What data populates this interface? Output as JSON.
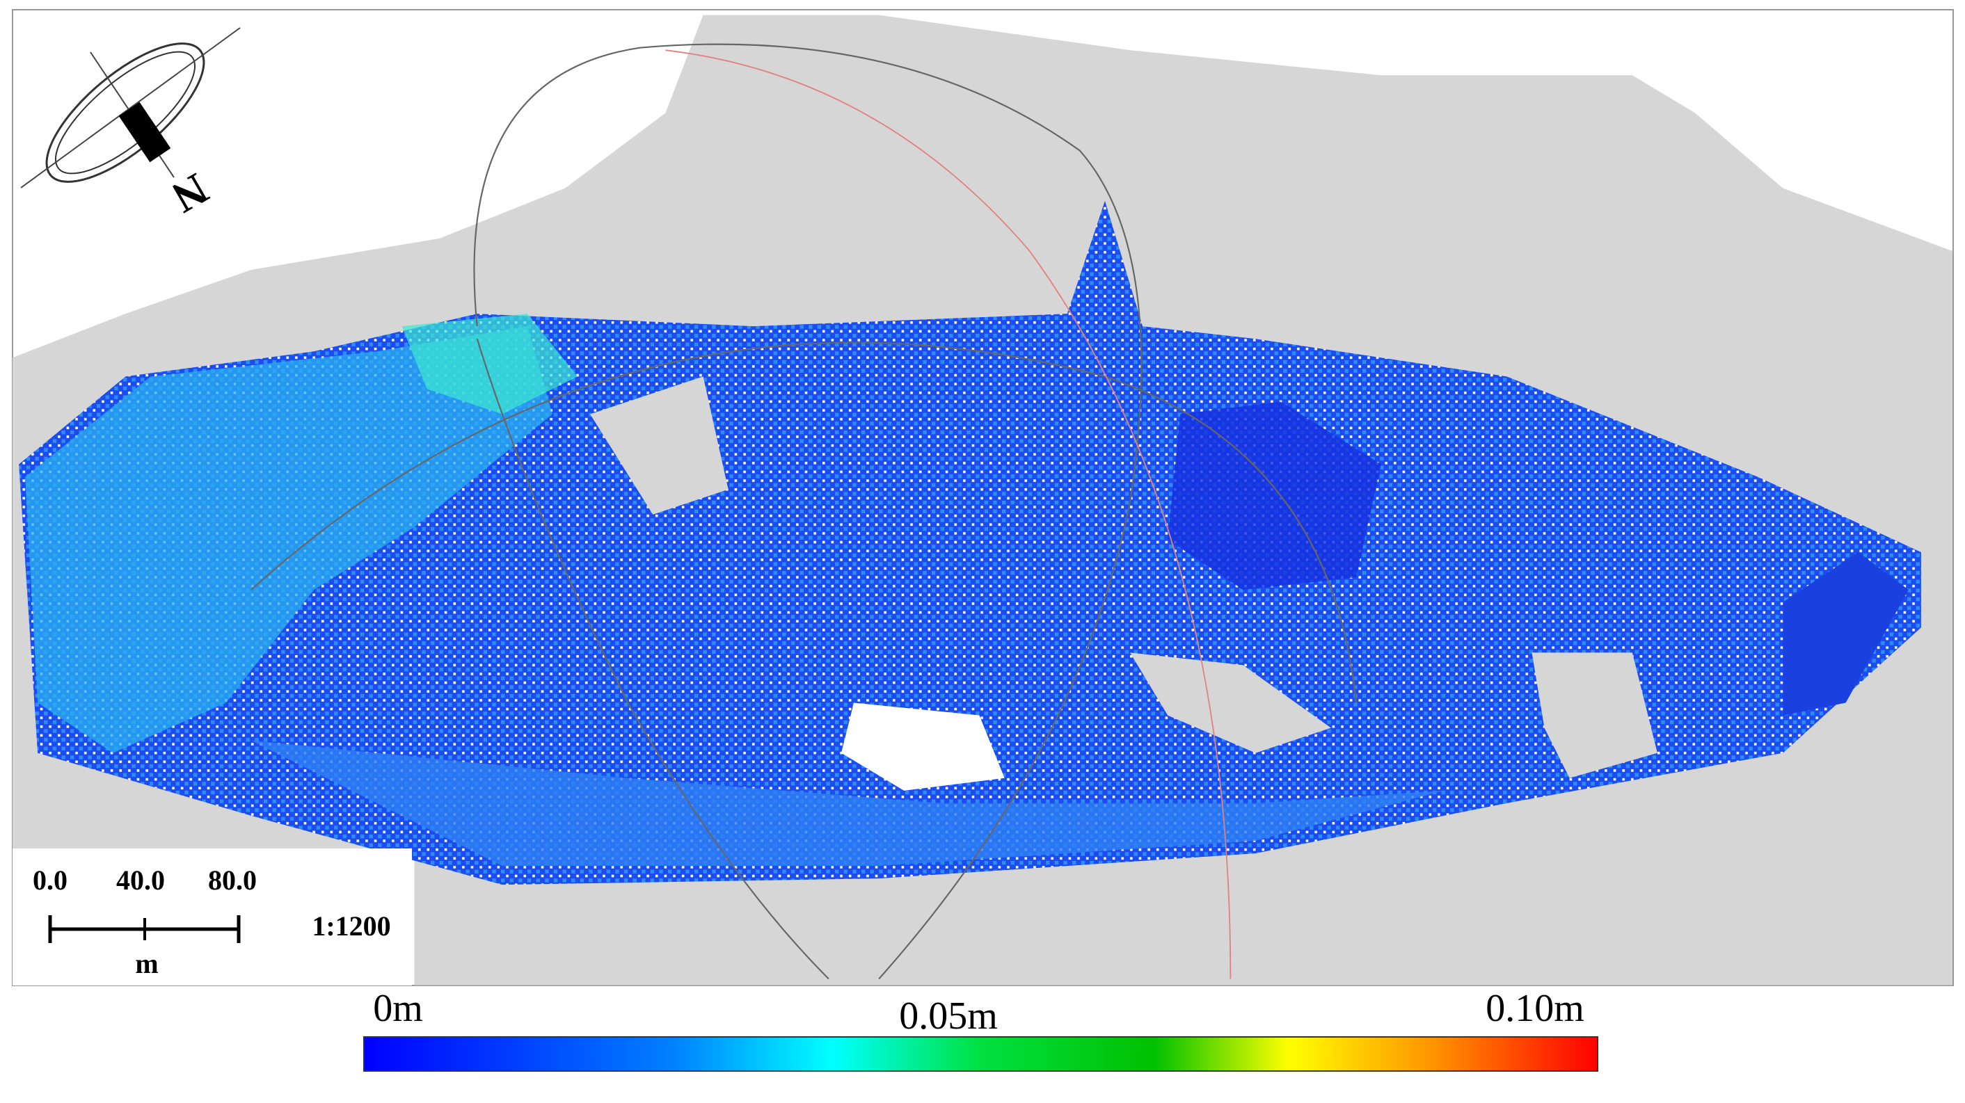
{
  "north_label": "N",
  "scale_bar": {
    "ticks": [
      "0.0",
      "40.0",
      "80.0"
    ],
    "unit": "m",
    "ratio": "1:1200"
  },
  "color_bar": {
    "labels": [
      "0m",
      "0.05m",
      "0.10m"
    ]
  }
}
